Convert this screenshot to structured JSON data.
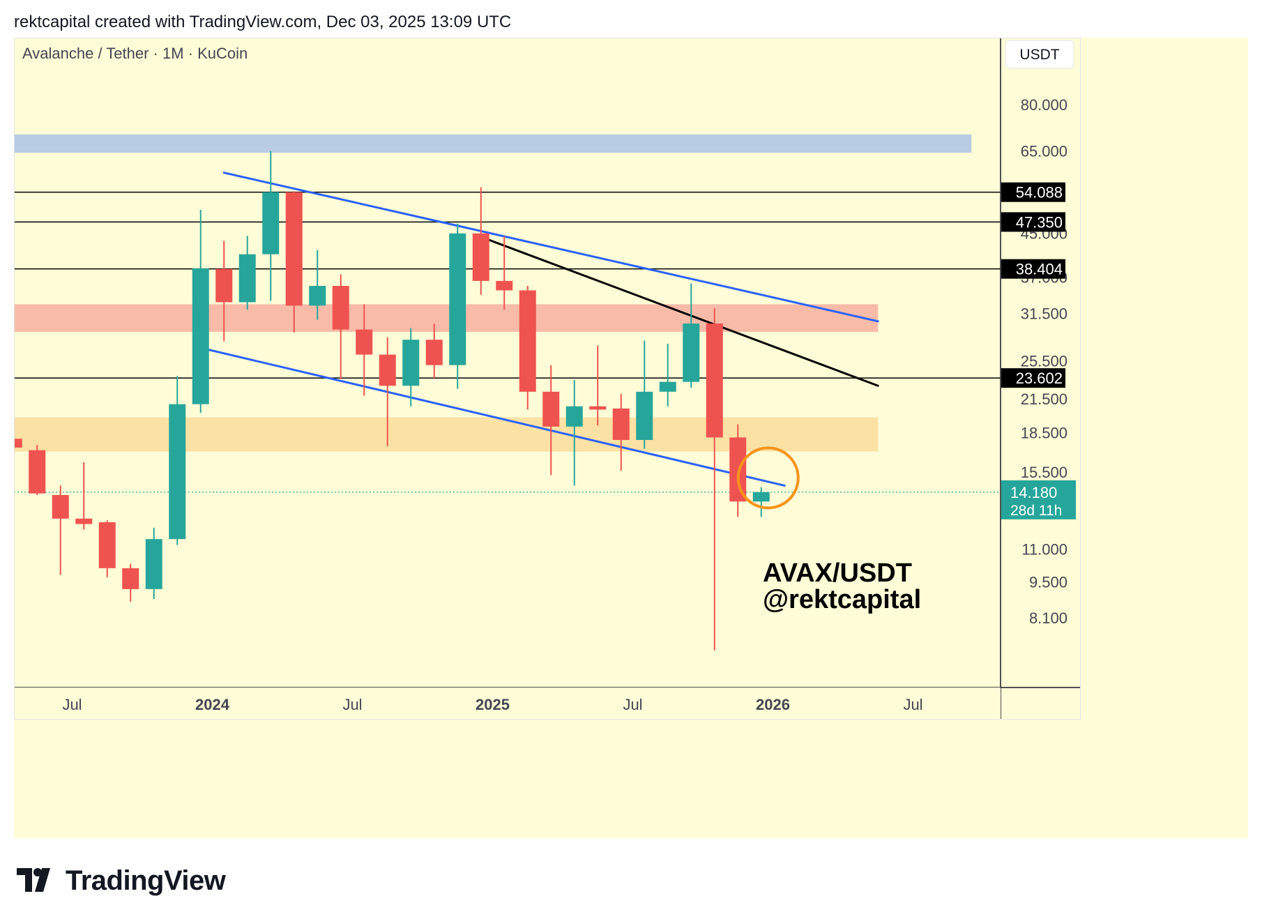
{
  "header": {
    "attribution": "rektcapital created with TradingView.com, Dec 03, 2025 13:09 UTC"
  },
  "footer": {
    "brand": "TradingView",
    "logo_icon": "tradingview-logo-icon"
  },
  "colors": {
    "background": "#FFFDD7",
    "up_candle": "#26A69A",
    "down_candle": "#EF5350",
    "channel_lines": "#2962FF",
    "blue_zone": "#B8CCE4",
    "red_zone": "#F8BBA8",
    "orange_zone": "#FCE1A4",
    "circle": "#F7931A",
    "price_badge": "#26A69A"
  },
  "chart_data": {
    "type": "candlestick",
    "title": "Avalanche / Tether · 1M · KuCoin",
    "currency_label": "USDT",
    "scale": "log",
    "ylim": [
      6.8,
      90
    ],
    "y_ticks": [
      "80.000",
      "65.000",
      "45.000",
      "37.000",
      "31.500",
      "25.500",
      "21.500",
      "18.500",
      "15.500",
      "11.000",
      "9.500",
      "8.100"
    ],
    "x_ticks": [
      {
        "label": "Jul",
        "date": "2023-07",
        "bold": false
      },
      {
        "label": "2024",
        "date": "2024-01",
        "bold": true
      },
      {
        "label": "Jul",
        "date": "2024-07",
        "bold": false
      },
      {
        "label": "2025",
        "date": "2025-01",
        "bold": true
      },
      {
        "label": "Jul",
        "date": "2025-07",
        "bold": false
      },
      {
        "label": "2026",
        "date": "2026-01",
        "bold": true
      },
      {
        "label": "Jul",
        "date": "2026-07",
        "bold": false
      }
    ],
    "x_start": "2023-04",
    "x_end": "2026-11",
    "candles": [
      {
        "date": "2023-04",
        "o": 18.0,
        "h": 19.8,
        "l": 16.4,
        "c": 17.3
      },
      {
        "date": "2023-05",
        "o": 17.1,
        "h": 17.5,
        "l": 14.0,
        "c": 14.1
      },
      {
        "date": "2023-06",
        "o": 14.0,
        "h": 14.6,
        "l": 9.8,
        "c": 12.6
      },
      {
        "date": "2023-07",
        "o": 12.6,
        "h": 16.2,
        "l": 12.0,
        "c": 12.3
      },
      {
        "date": "2023-08",
        "o": 12.4,
        "h": 12.5,
        "l": 9.7,
        "c": 10.1
      },
      {
        "date": "2023-09",
        "o": 10.1,
        "h": 10.3,
        "l": 8.7,
        "c": 9.2
      },
      {
        "date": "2023-10",
        "o": 9.2,
        "h": 12.1,
        "l": 8.8,
        "c": 11.5
      },
      {
        "date": "2023-11",
        "o": 11.5,
        "h": 23.8,
        "l": 11.2,
        "c": 21.0
      },
      {
        "date": "2023-12",
        "o": 21.0,
        "h": 50.0,
        "l": 20.2,
        "c": 38.5
      },
      {
        "date": "2024-01",
        "o": 38.4,
        "h": 43.5,
        "l": 27.8,
        "c": 33.1
      },
      {
        "date": "2024-02",
        "o": 33.1,
        "h": 44.5,
        "l": 32.0,
        "c": 41.0
      },
      {
        "date": "2024-03",
        "o": 41.0,
        "h": 65.0,
        "l": 33.3,
        "c": 54.1
      },
      {
        "date": "2024-04",
        "o": 54.1,
        "h": 54.3,
        "l": 28.9,
        "c": 32.6
      },
      {
        "date": "2024-05",
        "o": 32.6,
        "h": 41.8,
        "l": 30.6,
        "c": 35.6
      },
      {
        "date": "2024-06",
        "o": 35.6,
        "h": 37.5,
        "l": 23.5,
        "c": 29.3
      },
      {
        "date": "2024-07",
        "o": 29.3,
        "h": 32.8,
        "l": 21.8,
        "c": 26.2
      },
      {
        "date": "2024-08",
        "o": 26.2,
        "h": 28.3,
        "l": 17.4,
        "c": 22.8
      },
      {
        "date": "2024-09",
        "o": 22.8,
        "h": 29.5,
        "l": 20.8,
        "c": 28.0
      },
      {
        "date": "2024-10",
        "o": 28.0,
        "h": 30.1,
        "l": 23.6,
        "c": 25.0
      },
      {
        "date": "2024-11",
        "o": 25.0,
        "h": 47.0,
        "l": 22.5,
        "c": 45.0
      },
      {
        "date": "2024-12",
        "o": 45.0,
        "h": 55.3,
        "l": 34.2,
        "c": 36.4
      },
      {
        "date": "2025-01",
        "o": 36.4,
        "h": 44.5,
        "l": 32.0,
        "c": 34.9
      },
      {
        "date": "2025-02",
        "o": 34.9,
        "h": 35.6,
        "l": 20.5,
        "c": 22.2
      },
      {
        "date": "2025-03",
        "o": 22.2,
        "h": 25.0,
        "l": 15.3,
        "c": 19.0
      },
      {
        "date": "2025-04",
        "o": 19.0,
        "h": 23.4,
        "l": 14.6,
        "c": 20.8
      },
      {
        "date": "2025-05",
        "o": 20.8,
        "h": 27.3,
        "l": 19.1,
        "c": 20.5
      },
      {
        "date": "2025-06",
        "o": 20.6,
        "h": 22.0,
        "l": 15.6,
        "c": 17.9
      },
      {
        "date": "2025-07",
        "o": 17.9,
        "h": 27.9,
        "l": 17.2,
        "c": 22.2
      },
      {
        "date": "2025-08",
        "o": 22.2,
        "h": 27.5,
        "l": 20.8,
        "c": 23.2
      },
      {
        "date": "2025-09",
        "o": 23.2,
        "h": 36.0,
        "l": 22.6,
        "c": 30.1
      },
      {
        "date": "2025-10",
        "o": 30.1,
        "h": 32.2,
        "l": 7.0,
        "c": 18.1
      },
      {
        "date": "2025-11",
        "o": 18.1,
        "h": 19.2,
        "l": 12.7,
        "c": 13.6
      },
      {
        "date": "2025-12",
        "o": 13.6,
        "h": 14.5,
        "l": 12.7,
        "c": 14.18
      }
    ],
    "horizontal_levels": [
      "54.088",
      "47.350",
      "38.404",
      "23.602"
    ],
    "zones": [
      {
        "name": "blue-resistance-zone",
        "y_low": 64.5,
        "y_high": 70.0,
        "x_end": "2026-09",
        "color": "#B8CCE4"
      },
      {
        "name": "red-resistance-zone",
        "y_low": 29.0,
        "y_high": 32.8,
        "x_end": "2026-05",
        "color": "#F8BBA8"
      },
      {
        "name": "orange-support-zone",
        "y_low": 17.0,
        "y_high": 19.8,
        "x_end": "2026-05",
        "color": "#FCE1A4"
      }
    ],
    "trendlines": [
      {
        "name": "channel-upper",
        "x1": "2024-01",
        "y1": 59.0,
        "x2": "2026-05",
        "y2": 30.4,
        "color": "#2962FF"
      },
      {
        "name": "channel-lower",
        "x1": "2023-12",
        "y1": 27.0,
        "x2": "2026-01",
        "y2": 14.6,
        "color": "#2962FF"
      },
      {
        "name": "black-downtrend",
        "x1": "2024-12",
        "y1": 44.3,
        "x2": "2026-05",
        "y2": 22.8,
        "color": "#000000"
      }
    ],
    "circle_highlight": {
      "date": "2025-12",
      "price": 14.2
    },
    "last_price": "14.180",
    "countdown": "28d 11h",
    "watermark": {
      "line1": "AVAX/USDT",
      "line2": "@rektcapital"
    }
  }
}
